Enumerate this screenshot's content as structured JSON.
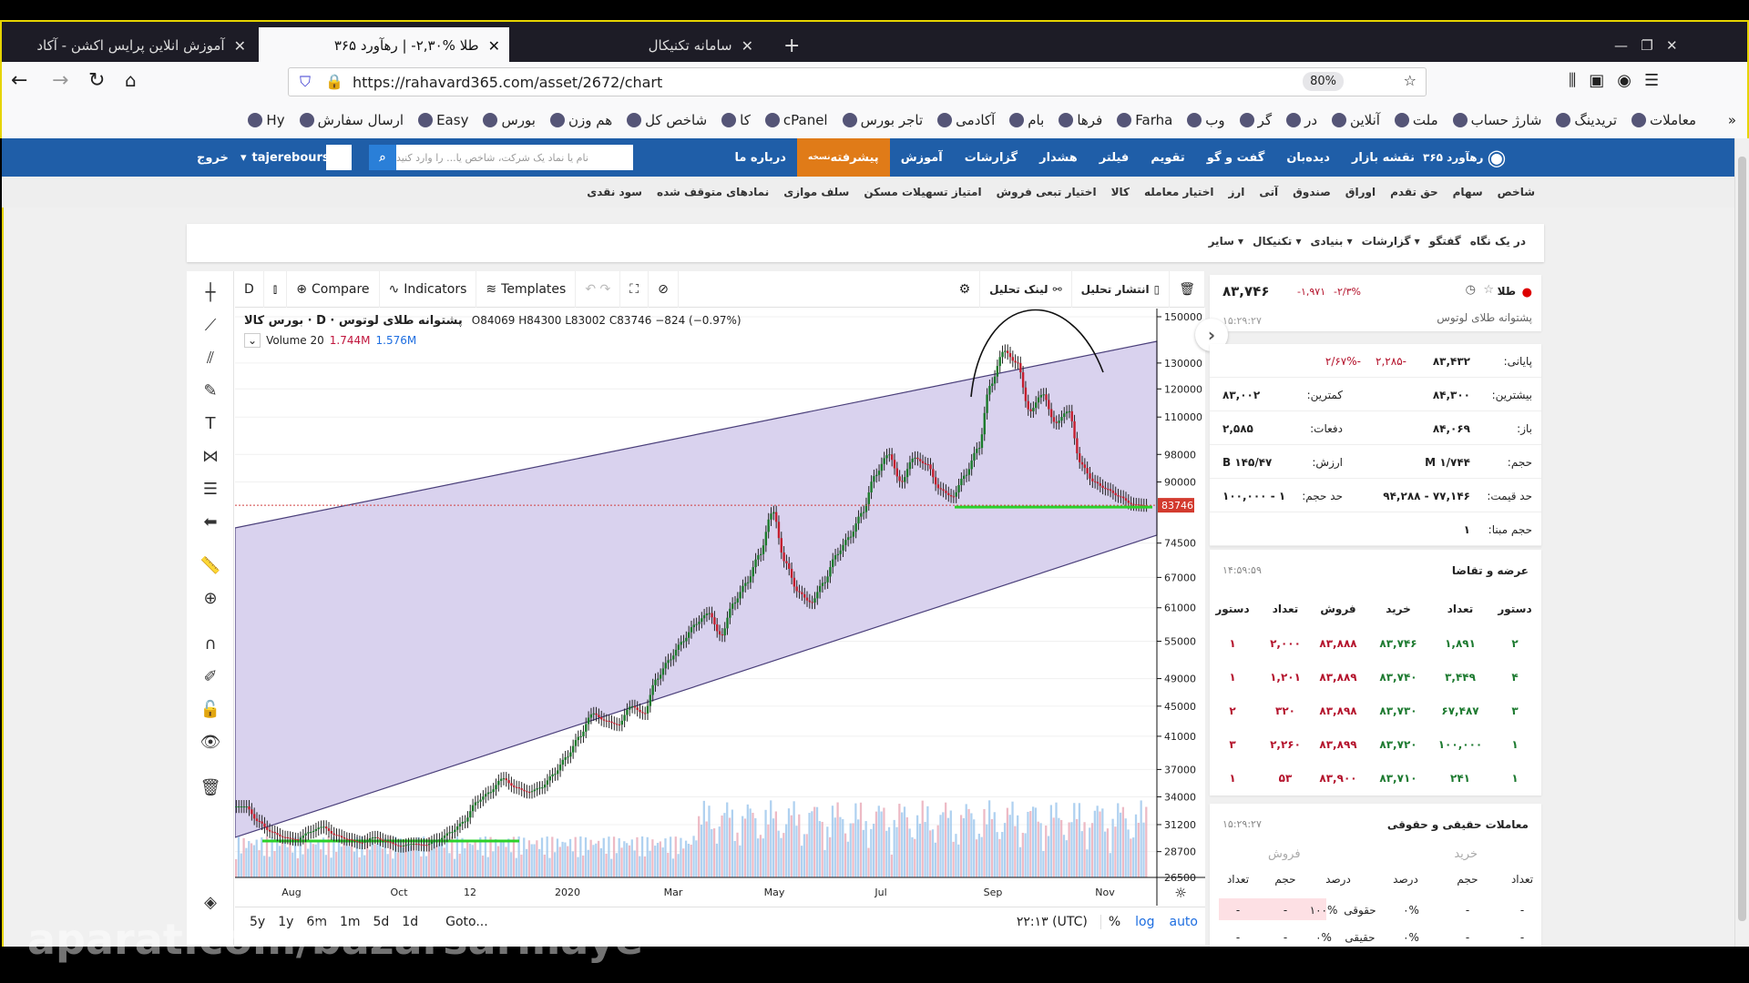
{
  "browser": {
    "tabs": [
      {
        "title": "آموزش انلاین پرایس اکشن - آکاد"
      },
      {
        "title": "طلا %۲,۳۰- | رهآورد ۳۶۵"
      },
      {
        "title": "سامانه تکنیکال"
      }
    ],
    "url": "https://rahavard365.com/asset/2672/chart",
    "zoom": "80%",
    "bookmarks": [
      "Hy",
      "ارسال سفارش",
      "Easy",
      "بورس",
      "هم وزن",
      "شاخص کل",
      "کا",
      "cPanel",
      "تاجر بورس",
      "آکادمی",
      "بام",
      "فرها",
      "Farha",
      "وب",
      "گر",
      "در",
      "آنلاین",
      "ملت",
      "شارژ حساب",
      "تریدینگ",
      "معاملات"
    ]
  },
  "site": {
    "logo": "رهآورد ۳۶۵",
    "nav": [
      "نقشه بازار",
      "دیده‌بان",
      "گفت و گو",
      "تقویم",
      "فیلتر",
      "هشدار",
      "گزارشات",
      "آموزش",
      "پیشرفته",
      "درباره ما"
    ],
    "advanced_badge": "نسخه",
    "search_placeholder": "نام یا نماد یک شرکت، شاخص یا... را وارد کنید",
    "user": "tajerebours",
    "logout": "خروج",
    "subnav": [
      "شاخص",
      "سهام",
      "حق تقدم",
      "اوراق",
      "صندوق",
      "آتی",
      "ارز",
      "اختیار معامله",
      "کالا",
      "اختیار تبعی فروش",
      "امتیاز تسهیلات مسکن",
      "سلف موازی",
      "نمادهای متوقف شده",
      "سود نقدی"
    ],
    "asset_tabs": [
      "در یک نگاه",
      "گفتگو",
      "گزارشات ▾",
      "بنیادی ▾",
      "تکنیکال ▾",
      "سایر ▾"
    ]
  },
  "chart": {
    "interval": "D",
    "compare": "Compare",
    "indicators": "Indicators",
    "templates": "Templates",
    "link": "لینک تحلیل",
    "publish": "انتشار تحلیل",
    "title": "پشتوانه طلای لوتوس · D · بورس کالا",
    "ohlc": "O84069  H84300  L83002  C83746  −824 (−0.97%)",
    "volume_label": "Volume 20",
    "vol1": "1.744M",
    "vol2": "1.576M",
    "ranges": [
      "5y",
      "1y",
      "6m",
      "1m",
      "5d",
      "1d"
    ],
    "goto": "Goto...",
    "time": "۲۲:۱۳ (UTC)",
    "pct": "%",
    "log": "log",
    "auto": "auto"
  },
  "chart_data": {
    "type": "candlestick",
    "scale": "log",
    "ylim": [
      26500,
      150000
    ],
    "yticks": [
      150000,
      130000,
      120000,
      110000,
      98000,
      90000,
      74500,
      67000,
      61000,
      55000,
      49000,
      45000,
      41000,
      37000,
      34000,
      31200,
      28700,
      26500
    ],
    "xticks": [
      "Aug",
      "Oct",
      "12",
      "2020",
      "Mar",
      "May",
      "Jul",
      "Sep",
      "Nov"
    ],
    "last_price": 83746,
    "weekly_close": [
      33000,
      31500,
      30500,
      30000,
      29800,
      30500,
      31000,
      30200,
      29800,
      29500,
      30000,
      29600,
      29200,
      29400,
      29300,
      29800,
      30500,
      31500,
      33500,
      34500,
      36000,
      35000,
      34500,
      35000,
      36500,
      38500,
      41000,
      44000,
      43000,
      42500,
      45000,
      44000,
      49000,
      52000,
      55000,
      58000,
      60000,
      56000,
      62000,
      66000,
      72000,
      82000,
      70000,
      64000,
      62000,
      66000,
      72000,
      76000,
      82000,
      92000,
      98000,
      90000,
      97000,
      95000,
      88000,
      86000,
      92000,
      100000,
      122000,
      135000,
      130000,
      112000,
      118000,
      108000,
      112000,
      95000,
      90000,
      88000,
      86000,
      84000,
      83746
    ]
  },
  "panel": {
    "symbol": "طلا",
    "name": "پشتوانه طلای لوتوس",
    "price": "۸۳,۷۴۶",
    "change": "-۱,۹۷۱",
    "change_pct": "-۲/۳%",
    "time": "۱۵:۲۹:۲۷",
    "stats": [
      {
        "label": "پایانی:",
        "value": "۸۳,۴۳۲",
        "extra1": "-۲,۲۸۵",
        "extra2": "-۲/۶۷%"
      },
      {
        "label": "بیشترین:",
        "value": "۸۴,۳۰۰",
        "label2": "کمترین:",
        "value2": "۸۳,۰۰۲"
      },
      {
        "label": "باز:",
        "value": "۸۴,۰۶۹",
        "label2": "دفعات:",
        "value2": "۲,۵۸۵"
      },
      {
        "label": "حجم:",
        "value": "۱/۷۴۴ M",
        "label2": "ارزش:",
        "value2": "۱۴۵/۴۷ B"
      },
      {
        "label": "حد قیمت:",
        "value": "۷۷,۱۴۶ - ۹۴,۲۸۸",
        "label2": "حد حجم:",
        "value2": "۱ - ۱۰۰,۰۰۰"
      },
      {
        "label": "حجم مبنا:",
        "value": "۱"
      }
    ],
    "orderbook": {
      "title": "عرضه و تقاضا",
      "time": "۱۴:۵۹:۵۹",
      "headers": [
        "دستور",
        "تعداد",
        "خرید",
        "فروش",
        "تعداد",
        "دستور"
      ],
      "rows": [
        [
          "۲",
          "۱,۸۹۱",
          "۸۳,۷۴۶",
          "۸۳,۸۸۸",
          "۲,۰۰۰",
          "۱"
        ],
        [
          "۴",
          "۳,۴۴۹",
          "۸۳,۷۴۰",
          "۸۳,۸۸۹",
          "۱,۲۰۱",
          "۱"
        ],
        [
          "۳",
          "۶۷,۴۸۷",
          "۸۳,۷۳۰",
          "۸۳,۸۹۸",
          "۳۲۰",
          "۲"
        ],
        [
          "۱",
          "۱۰۰,۰۰۰",
          "۸۳,۷۲۰",
          "۸۳,۸۹۹",
          "۲,۲۶۰",
          "۳"
        ],
        [
          "۱",
          "۲۴۱",
          "۸۳,۷۱۰",
          "۸۳,۹۰۰",
          "۵۳",
          "۱"
        ]
      ]
    },
    "realLegal": {
      "title": "معاملات حقیقی و حقوقی",
      "time": "۱۵:۲۹:۲۷",
      "buy": "خرید",
      "sell": "فروش",
      "headers": [
        "تعداد",
        "حجم",
        "درصد",
        "درصد",
        "حجم",
        "تعداد"
      ],
      "rows": [
        [
          "-",
          "-",
          "۰%",
          "حقوقی",
          "۱۰۰%",
          "-",
          "-"
        ],
        [
          "-",
          "-",
          "۰%",
          "حقیقی",
          "۰%",
          "-",
          "-"
        ]
      ]
    }
  },
  "watermark": "aparat.com/bazarsarmaye"
}
